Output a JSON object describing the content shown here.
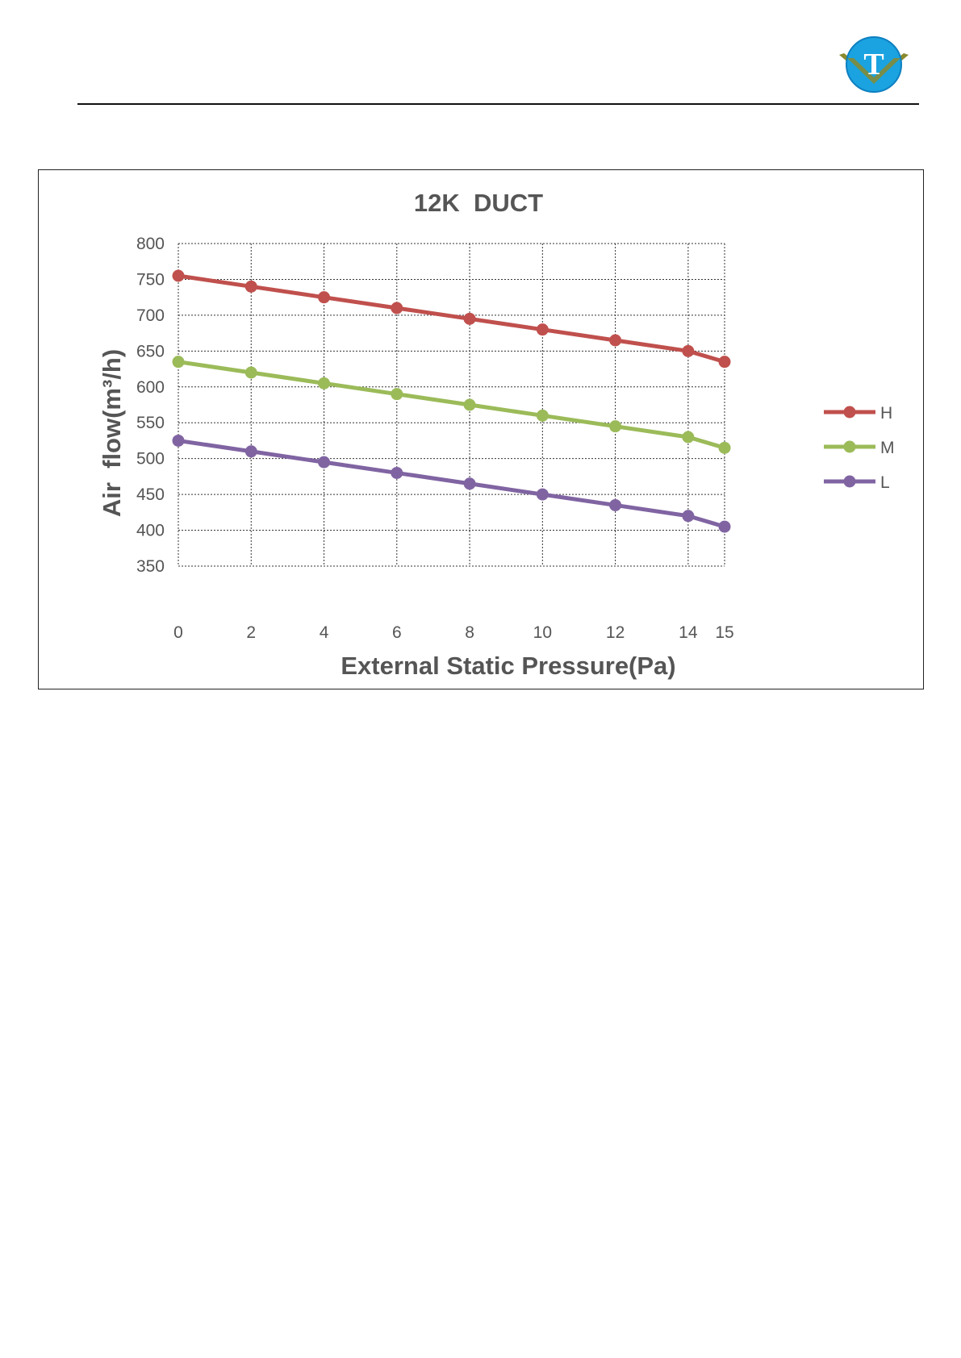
{
  "header": {
    "logo": {
      "letter": "T",
      "colors": {
        "circle": "#1aa3e0",
        "ring": "#0e7fc0",
        "chevron": "#8a8a2e",
        "letter": "#ffffff"
      }
    }
  },
  "chart_data": {
    "type": "line",
    "title": "12K  DUCT",
    "xlabel": "External Static Pressure(Pa)",
    "ylabel": "Air  flow(m³/h)",
    "x": [
      0,
      2,
      4,
      6,
      8,
      10,
      12,
      14,
      15
    ],
    "x_tick_labels": [
      "0",
      "2",
      "4",
      "6",
      "8",
      "10",
      "12",
      "14",
      "15"
    ],
    "y_tick_labels": [
      "800",
      "750",
      "700",
      "650",
      "600",
      "550",
      "500",
      "450",
      "400",
      "350"
    ],
    "ylim": [
      350,
      800
    ],
    "y_ticks": [
      350,
      400,
      450,
      500,
      550,
      600,
      650,
      700,
      750,
      800
    ],
    "grid": true,
    "grid_style": "dotted",
    "legend_position": "right",
    "series": [
      {
        "name": "H",
        "color": "#c0504d",
        "values": [
          755,
          740,
          725,
          710,
          695,
          680,
          665,
          650,
          635
        ]
      },
      {
        "name": "M",
        "color": "#9bbb59",
        "values": [
          635,
          620,
          605,
          590,
          575,
          560,
          545,
          530,
          515
        ]
      },
      {
        "name": "L",
        "color": "#8064a2",
        "values": [
          525,
          510,
          495,
          480,
          465,
          450,
          435,
          420,
          405
        ]
      }
    ]
  }
}
